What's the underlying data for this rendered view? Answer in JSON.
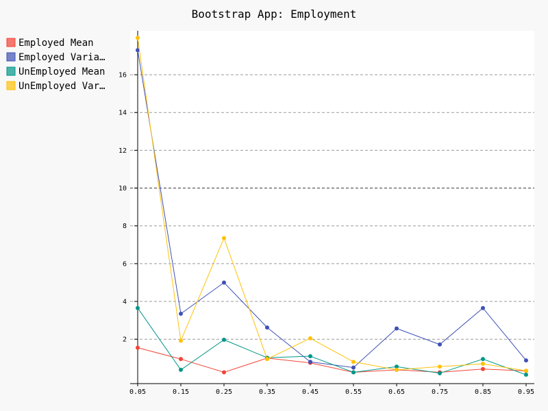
{
  "chart_data": {
    "type": "line",
    "title": "Bootstrap App: Employment",
    "xlabel": "",
    "ylabel": "",
    "x": [
      0.05,
      0.15,
      0.25,
      0.35,
      0.45,
      0.55,
      0.65,
      0.75,
      0.85,
      0.95
    ],
    "x_tick_labels": [
      "0.05",
      "0.15",
      "0.25",
      "0.35",
      "0.45",
      "0.55",
      "0.65",
      "0.75",
      "0.85",
      "0.95"
    ],
    "y_ticks": [
      2,
      4,
      6,
      8,
      10,
      12,
      14,
      16
    ],
    "y_tick_labels": [
      "2",
      "4",
      "6",
      "8",
      "10",
      "12",
      "14",
      "16"
    ],
    "ylim": [
      -2.4,
      18.4
    ],
    "grid": "horizontal dashed",
    "legend_position": "top-left, outside plot",
    "series": [
      {
        "name": "Employed Mean",
        "legend_label": "Employed Mean",
        "color": "#F44336",
        "values": [
          1.55,
          0.95,
          0.25,
          1.0,
          0.75,
          0.25,
          0.38,
          0.25,
          0.42,
          0.32
        ]
      },
      {
        "name": "Employed Variance",
        "legend_label": "Employed Varia…",
        "color": "#3F51B5",
        "values": [
          17.3,
          3.35,
          5.0,
          2.62,
          0.8,
          0.5,
          2.57,
          1.72,
          3.65,
          0.88
        ]
      },
      {
        "name": "UnEmployed Mean",
        "legend_label": "UnEmployed Mean",
        "color": "#009688",
        "values": [
          3.65,
          0.38,
          1.97,
          1.02,
          1.1,
          0.25,
          0.55,
          0.2,
          0.95,
          0.12
        ]
      },
      {
        "name": "UnEmployed Variance",
        "legend_label": "UnEmployed Var…",
        "color": "#FFC107",
        "values": [
          17.95,
          1.92,
          7.35,
          0.95,
          2.05,
          0.8,
          0.38,
          0.55,
          0.7,
          0.33
        ]
      }
    ]
  }
}
